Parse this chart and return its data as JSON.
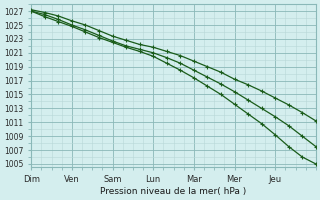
{
  "title": "",
  "xlabel": "Pression niveau de la mer( hPa )",
  "ylabel": "",
  "background_color": "#d4eeee",
  "grid_color_minor": "#b8d8d8",
  "grid_color_major": "#8ab8b8",
  "line_color": "#1a5c1a",
  "ylim": [
    1004.5,
    1028.0
  ],
  "yticks": [
    1005,
    1007,
    1009,
    1011,
    1013,
    1015,
    1017,
    1019,
    1021,
    1023,
    1025,
    1027
  ],
  "day_labels": [
    "Dim",
    "Ven",
    "Sam",
    "Lun",
    "Mar",
    "Mer",
    "Jeu"
  ],
  "day_positions": [
    0,
    24,
    48,
    72,
    96,
    120,
    144
  ],
  "xlim": [
    0,
    168
  ],
  "line1_x": [
    0,
    8,
    16,
    24,
    32,
    40,
    48,
    56,
    64,
    72,
    80,
    88,
    96,
    104,
    112,
    120,
    128,
    136,
    144,
    152,
    160,
    168
  ],
  "line1_y": [
    1027.2,
    1026.8,
    1026.3,
    1025.6,
    1025.0,
    1024.2,
    1023.4,
    1022.8,
    1022.2,
    1021.8,
    1021.2,
    1020.6,
    1019.8,
    1019.0,
    1018.2,
    1017.2,
    1016.4,
    1015.5,
    1014.5,
    1013.5,
    1012.4,
    1011.2
  ],
  "line2_x": [
    0,
    8,
    16,
    24,
    32,
    40,
    48,
    56,
    64,
    72,
    80,
    88,
    96,
    104,
    112,
    120,
    128,
    136,
    144,
    152,
    160,
    168
  ],
  "line2_y": [
    1027.0,
    1026.5,
    1025.8,
    1025.0,
    1024.3,
    1023.5,
    1022.7,
    1022.0,
    1021.5,
    1021.0,
    1020.3,
    1019.5,
    1018.5,
    1017.5,
    1016.5,
    1015.4,
    1014.2,
    1013.0,
    1011.8,
    1010.5,
    1009.0,
    1007.5
  ],
  "line3_x": [
    0,
    8,
    16,
    24,
    32,
    40,
    48,
    56,
    64,
    72,
    80,
    88,
    96,
    104,
    112,
    120,
    128,
    136,
    144,
    152,
    160,
    168
  ],
  "line3_y": [
    1027.0,
    1026.2,
    1025.5,
    1024.8,
    1024.0,
    1023.2,
    1022.5,
    1021.8,
    1021.2,
    1020.5,
    1019.5,
    1018.5,
    1017.4,
    1016.2,
    1015.0,
    1013.6,
    1012.2,
    1010.8,
    1009.2,
    1007.5,
    1006.0,
    1005.0
  ]
}
